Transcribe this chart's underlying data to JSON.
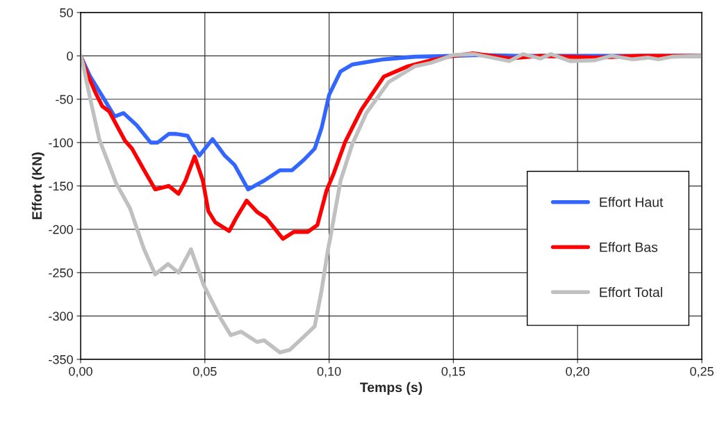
{
  "chart_data": {
    "type": "line",
    "xlabel": "Temps (s)",
    "ylabel": "Effort (KN)",
    "xlim": [
      0,
      0.25
    ],
    "xticks": [
      {
        "value": 0,
        "label": "0,00"
      },
      {
        "value": 0.05,
        "label": "0,05"
      },
      {
        "value": 0.1,
        "label": "0,10"
      },
      {
        "value": 0.15,
        "label": "0,15"
      },
      {
        "value": 0.2,
        "label": "0,20"
      },
      {
        "value": 0.25,
        "label": "0,25"
      }
    ],
    "ylim": [
      -350,
      50
    ],
    "yticks": [
      -350,
      -300,
      -250,
      -200,
      -150,
      -100,
      -50,
      0,
      50
    ],
    "grid": true,
    "legend": "right",
    "marker": "none",
    "line_style": "solid",
    "series": [
      {
        "name": "Effort Haut",
        "color": "#3366ff",
        "x": [
          0,
          0.0039,
          0.0095,
          0.0137,
          0.0173,
          0.0226,
          0.0282,
          0.031,
          0.0355,
          0.0383,
          0.043,
          0.0478,
          0.0531,
          0.058,
          0.062,
          0.0674,
          0.0738,
          0.0802,
          0.085,
          0.0898,
          0.0942,
          0.097,
          0.1,
          0.1046,
          0.1093,
          0.122,
          0.1345,
          0.15,
          0.16,
          0.175,
          0.2,
          0.225,
          0.25
        ],
        "values": [
          0,
          -24,
          -50,
          -70,
          -66,
          -80,
          -100,
          -100,
          -90,
          -90,
          -92,
          -115,
          -96,
          -115,
          -126,
          -154,
          -144,
          -132,
          -132,
          -120,
          -107,
          -83,
          -45,
          -18,
          -10,
          -4,
          -1,
          0,
          1,
          0,
          0,
          0,
          0
        ]
      },
      {
        "name": "Effort Bas",
        "color": "#ff0000",
        "x": [
          0,
          0.002,
          0.0059,
          0.0087,
          0.0115,
          0.0145,
          0.0179,
          0.0207,
          0.0254,
          0.03,
          0.0355,
          0.0394,
          0.0422,
          0.0459,
          0.0492,
          0.0514,
          0.0542,
          0.0598,
          0.0626,
          0.0668,
          0.071,
          0.0747,
          0.0814,
          0.0858,
          0.0914,
          0.0953,
          0.099,
          0.1018,
          0.1065,
          0.113,
          0.122,
          0.1317,
          0.141,
          0.15,
          0.158,
          0.1725,
          0.185,
          0.207,
          0.225,
          0.25
        ],
        "values": [
          0,
          -16,
          -42,
          -58,
          -64,
          -80,
          -98,
          -107,
          -131,
          -154,
          -150,
          -159,
          -144,
          -116,
          -144,
          -179,
          -192,
          -202,
          -187,
          -167,
          -180,
          -187,
          -211,
          -203,
          -203,
          -195,
          -155,
          -136,
          -99,
          -62,
          -24,
          -12,
          -5,
          0,
          3,
          -3,
          0,
          -2,
          0,
          0
        ]
      },
      {
        "name": "Effort Total",
        "color": "#c0c0c0",
        "x": [
          0,
          0.001,
          0.0039,
          0.0075,
          0.0115,
          0.0143,
          0.0199,
          0.0254,
          0.03,
          0.0352,
          0.0394,
          0.0444,
          0.0495,
          0.0562,
          0.0604,
          0.0646,
          0.071,
          0.0738,
          0.0802,
          0.0842,
          0.0898,
          0.0942,
          0.097,
          0.0995,
          0.1004,
          0.1046,
          0.1093,
          0.115,
          0.124,
          0.1345,
          0.141,
          0.15,
          0.1585,
          0.1725,
          0.178,
          0.185,
          0.1893,
          0.197,
          0.207,
          0.2137,
          0.222,
          0.2285,
          0.2325,
          0.238,
          0.25
        ],
        "values": [
          0,
          -10,
          -50,
          -96,
          -126,
          -147,
          -176,
          -222,
          -252,
          -240,
          -250,
          -223,
          -264,
          -302,
          -322,
          -318,
          -330,
          -328,
          -342,
          -339,
          -324,
          -312,
          -270,
          -224,
          -211,
          -144,
          -102,
          -66,
          -30,
          -12,
          -8,
          1,
          2,
          -6,
          2,
          -3,
          2,
          -6,
          -5,
          0,
          -4,
          -2,
          -4,
          -1,
          0
        ]
      }
    ]
  }
}
